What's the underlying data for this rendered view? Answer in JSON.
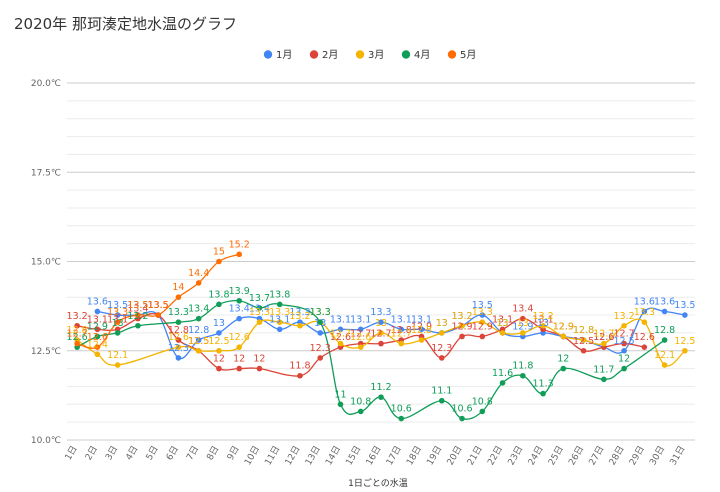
{
  "chart_data": {
    "type": "line",
    "title": "2020年 那珂湊定地水温のグラフ",
    "xlabel": "1日ごとの水温",
    "ylabel": "",
    "ylim": [
      10.0,
      20.0
    ],
    "yticks": [
      "10.0℃",
      "12.5℃",
      "15.0℃",
      "17.5℃",
      "20.0℃"
    ],
    "ytick_values": [
      10.0,
      12.5,
      15.0,
      17.5,
      20.0
    ],
    "legend_position": "top-center",
    "categories": [
      "1日",
      "2日",
      "3日",
      "4日",
      "5日",
      "6日",
      "7日",
      "8日",
      "9日",
      "10日",
      "11日",
      "12日",
      "13日",
      "14日",
      "15日",
      "16日",
      "17日",
      "18日",
      "19日",
      "20日",
      "21日",
      "22日",
      "23日",
      "24日",
      "25日",
      "26日",
      "27日",
      "28日",
      "29日",
      "30日",
      "31日"
    ],
    "series": [
      {
        "name": "1月",
        "color": "#4285f4",
        "values": [
          null,
          13.6,
          13.5,
          13.5,
          13.5,
          12.3,
          12.8,
          13.0,
          13.4,
          13.4,
          13.1,
          13.3,
          13.0,
          13.1,
          13.1,
          13.3,
          13.1,
          13.1,
          13.0,
          13.2,
          13.5,
          13.0,
          12.9,
          13.0,
          12.9,
          12.8,
          12.6,
          12.5,
          13.6,
          13.6,
          13.5
        ]
      },
      {
        "name": "2月",
        "color": "#db4437",
        "values": [
          13.2,
          13.1,
          13.1,
          13.4,
          13.5,
          12.8,
          12.5,
          12.0,
          12.0,
          12.0,
          null,
          11.8,
          12.3,
          12.6,
          12.7,
          12.7,
          12.8,
          12.9,
          12.3,
          12.9,
          12.9,
          13.1,
          13.4,
          13.1,
          12.9,
          12.5,
          12.6,
          12.7,
          12.6,
          null,
          null
        ]
      },
      {
        "name": "3月",
        "color": "#f4b400",
        "values": [
          12.8,
          12.4,
          12.1,
          null,
          null,
          12.6,
          12.5,
          12.5,
          12.6,
          13.3,
          13.3,
          13.2,
          13.3,
          12.7,
          12.6,
          13.0,
          12.7,
          12.8,
          13.0,
          13.2,
          13.3,
          13.0,
          13.0,
          13.2,
          12.9,
          12.8,
          12.7,
          13.2,
          13.3,
          12.1,
          12.5
        ]
      },
      {
        "name": "4月",
        "color": "#0f9d58",
        "values": [
          12.6,
          12.9,
          13.0,
          13.2,
          null,
          13.3,
          13.4,
          13.8,
          13.9,
          13.7,
          13.8,
          null,
          13.3,
          11.0,
          10.8,
          11.2,
          10.6,
          null,
          11.1,
          10.6,
          10.8,
          11.6,
          11.8,
          11.3,
          12.0,
          null,
          11.7,
          12.0,
          null,
          12.8,
          null
        ]
      },
      {
        "name": "5月",
        "color": "#ff6d01",
        "values": [
          12.7,
          12.6,
          13.3,
          13.5,
          13.5,
          14.0,
          14.4,
          15.0,
          15.2,
          null,
          null,
          null,
          null,
          null,
          null,
          null,
          null,
          null,
          null,
          null,
          null,
          null,
          null,
          null,
          null,
          null,
          null,
          null,
          null,
          null,
          null
        ]
      }
    ]
  }
}
